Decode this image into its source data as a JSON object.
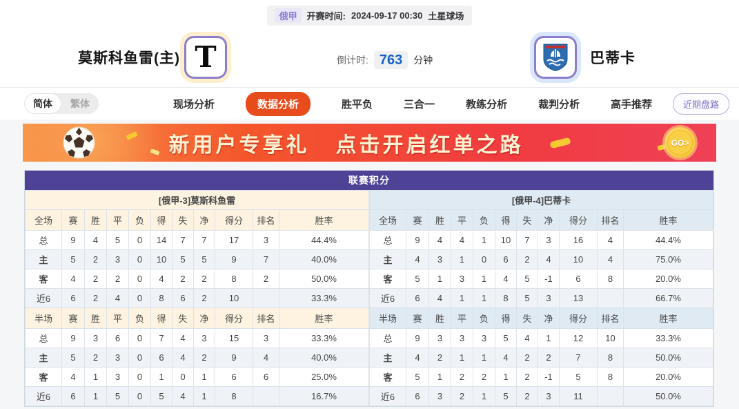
{
  "top_bar": {
    "league": "俄甲",
    "kickoff_label": "开赛时间:",
    "kickoff_time": "2024-09-17 00:30",
    "venue": "土星球场"
  },
  "match": {
    "home_name": "莫斯科鱼雷(主)",
    "home_logo_letter": "T",
    "away_name": "巴蒂卡",
    "countdown_label": "倒计时:",
    "countdown_value": "763",
    "countdown_unit": "分钟"
  },
  "nav": {
    "lang_simplified": "简体",
    "lang_traditional": "繁体",
    "tabs": [
      {
        "label": "现场分析",
        "active": false
      },
      {
        "label": "数据分析",
        "active": true
      },
      {
        "label": "胜平负",
        "active": false
      },
      {
        "label": "三合一",
        "active": false
      },
      {
        "label": "教练分析",
        "active": false
      },
      {
        "label": "裁判分析",
        "active": false
      },
      {
        "label": "高手推荐",
        "active": false
      }
    ],
    "recent_button": "近期盘路"
  },
  "banner": {
    "text_part1": "新用户专享礼",
    "text_part2": "点击开启红单之路",
    "go_label": "GO>",
    "icon": "soccer-ball-icon"
  },
  "standings": {
    "title": "联赛积分",
    "columns_full": [
      "全场",
      "赛",
      "胜",
      "平",
      "负",
      "得",
      "失",
      "净",
      "得分",
      "排名",
      "胜率"
    ],
    "columns_half": [
      "半场",
      "赛",
      "胜",
      "平",
      "负",
      "得",
      "失",
      "净",
      "得分",
      "排名",
      "胜率"
    ],
    "home": {
      "header": "[俄甲-3]莫斯科鱼雷",
      "full_rows": [
        [
          "总",
          "9",
          "4",
          "5",
          "0",
          "14",
          "7",
          "7",
          "17",
          "3",
          "44.4%"
        ],
        [
          "主",
          "5",
          "2",
          "3",
          "0",
          "10",
          "5",
          "5",
          "9",
          "7",
          "40.0%"
        ],
        [
          "客",
          "4",
          "2",
          "2",
          "0",
          "4",
          "2",
          "2",
          "8",
          "2",
          "50.0%"
        ],
        [
          "近6",
          "6",
          "2",
          "4",
          "0",
          "8",
          "6",
          "2",
          "10",
          "",
          "33.3%"
        ]
      ],
      "half_rows": [
        [
          "总",
          "9",
          "3",
          "6",
          "0",
          "7",
          "4",
          "3",
          "15",
          "3",
          "33.3%"
        ],
        [
          "主",
          "5",
          "2",
          "3",
          "0",
          "6",
          "4",
          "2",
          "9",
          "4",
          "40.0%"
        ],
        [
          "客",
          "4",
          "1",
          "3",
          "0",
          "1",
          "0",
          "1",
          "6",
          "6",
          "25.0%"
        ],
        [
          "近6",
          "6",
          "1",
          "5",
          "0",
          "5",
          "4",
          "1",
          "8",
          "",
          "16.7%"
        ]
      ]
    },
    "away": {
      "header": "[俄甲-4]巴蒂卡",
      "full_rows": [
        [
          "总",
          "9",
          "4",
          "4",
          "1",
          "10",
          "7",
          "3",
          "16",
          "4",
          "44.4%"
        ],
        [
          "主",
          "4",
          "3",
          "1",
          "0",
          "6",
          "2",
          "4",
          "10",
          "4",
          "75.0%"
        ],
        [
          "客",
          "5",
          "1",
          "3",
          "1",
          "4",
          "5",
          "-1",
          "6",
          "8",
          "20.0%"
        ],
        [
          "近6",
          "6",
          "4",
          "1",
          "1",
          "8",
          "5",
          "3",
          "13",
          "",
          "66.7%"
        ]
      ],
      "half_rows": [
        [
          "总",
          "9",
          "3",
          "3",
          "3",
          "5",
          "4",
          "1",
          "12",
          "10",
          "33.3%"
        ],
        [
          "主",
          "4",
          "2",
          "1",
          "1",
          "4",
          "2",
          "2",
          "7",
          "8",
          "50.0%"
        ],
        [
          "客",
          "5",
          "1",
          "2",
          "2",
          "1",
          "2",
          "-1",
          "5",
          "8",
          "20.0%"
        ],
        [
          "近6",
          "6",
          "3",
          "2",
          "1",
          "5",
          "2",
          "3",
          "11",
          "",
          "50.0%"
        ]
      ]
    }
  },
  "colors": {
    "table_title_purple": "#4d4296",
    "active_tab_orange": "#e84b1c",
    "home_theme_cream": "#fdf3e0",
    "away_theme_blue": "#dfeaf3",
    "countdown_blue": "#1761c5",
    "home_label_red": "#cc2222",
    "away_label_blue": "#2244cc",
    "recent_btn_purple": "#7d6fc5",
    "banner_gradient_left": "#f8964a",
    "banner_gradient_right": "#ef4156"
  }
}
